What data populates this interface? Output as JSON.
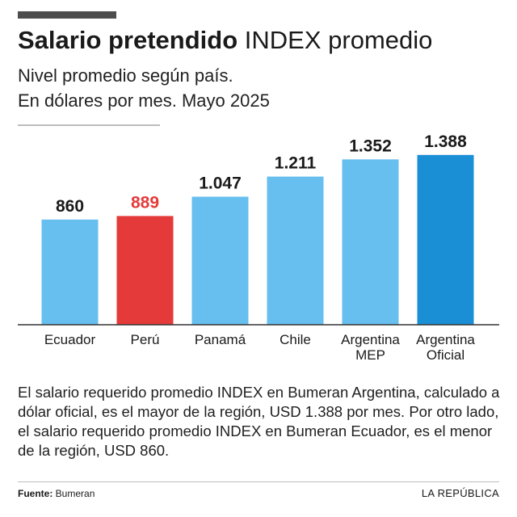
{
  "header": {
    "title_bold": "Salario pretendido",
    "title_rest": " INDEX promedio",
    "subtitle_line1": "Nivel promedio según país.",
    "subtitle_line2": "En dólares por mes. Mayo 2025"
  },
  "chart_data": {
    "type": "bar",
    "categories": [
      [
        "Ecuador"
      ],
      [
        "Perú"
      ],
      [
        "Panamá"
      ],
      [
        "Chile"
      ],
      [
        "Argentina",
        "MEP"
      ],
      [
        "Argentina",
        "Oficial"
      ]
    ],
    "values": [
      860,
      889,
      1047,
      1211,
      1352,
      1388
    ],
    "value_labels": [
      "860",
      "889",
      "1.047",
      "1.211",
      "1.352",
      "1.388"
    ],
    "bar_colors": [
      "#66bfee",
      "#e53a3a",
      "#66bfee",
      "#66bfee",
      "#66bfee",
      "#1a8fd6"
    ],
    "value_label_colors": [
      "#1a1a1a",
      "#e53a3a",
      "#1a1a1a",
      "#1a1a1a",
      "#1a1a1a",
      "#1a1a1a"
    ],
    "ylim": [
      0,
      1400
    ],
    "grid": false,
    "legend": "none"
  },
  "description": "El salario requerido promedio INDEX en Bumeran Argentina, calculado a dólar oficial, es el mayor de la región, USD 1.388 por mes. Por otro lado, el salario requerido promedio INDEX en Bumeran Ecuador, es el menor de la región, USD 860.",
  "footer": {
    "source_label": "Fuente:",
    "source_value": " Bumeran",
    "brand": "LA REPÚBLICA"
  },
  "colors": {
    "baseline": "#333333"
  }
}
